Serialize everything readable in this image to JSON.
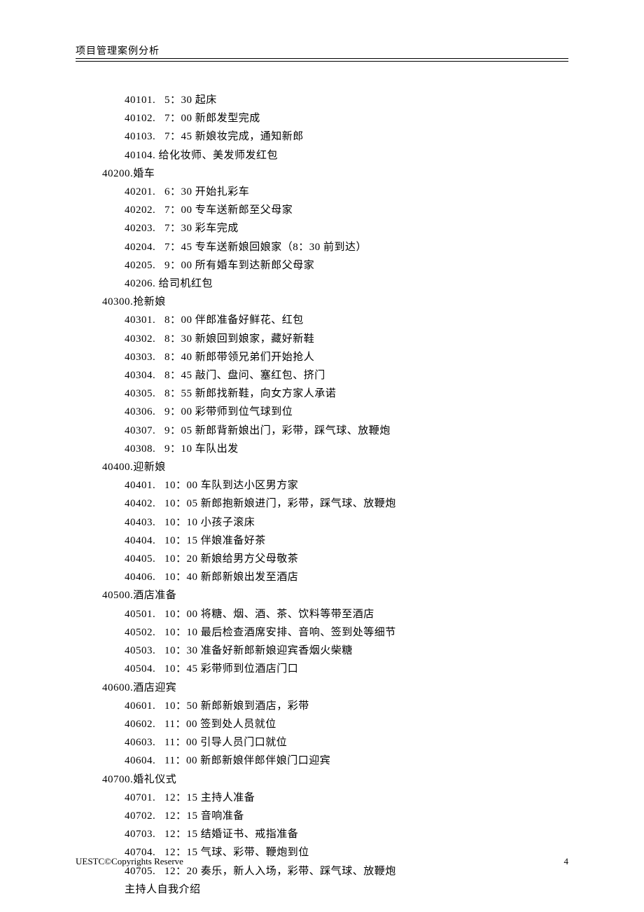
{
  "header": {
    "title": "项目管理案例分析"
  },
  "footer": {
    "left": "UESTC©Copyrights Reserve",
    "page": "4"
  },
  "lines": [
    {
      "indent": 2,
      "num": "40101.",
      "gap": "   ",
      "time": "5：30",
      "text": " 起床"
    },
    {
      "indent": 2,
      "num": "40102.",
      "gap": "   ",
      "time": "7：00",
      "text": " 新郎发型完成"
    },
    {
      "indent": 2,
      "num": "40103.",
      "gap": "   ",
      "time": "7：45",
      "text": " 新娘妆完成，通知新郎"
    },
    {
      "indent": 2,
      "num": "40104.",
      "gap": " ",
      "time": "",
      "text": "给化妆师、美发师发红包"
    },
    {
      "indent": 1,
      "num": "40200.",
      "gap": "",
      "time": "",
      "text": "婚车"
    },
    {
      "indent": 2,
      "num": "40201.",
      "gap": "   ",
      "time": "6：30",
      "text": " 开始扎彩车"
    },
    {
      "indent": 2,
      "num": "40202.",
      "gap": "   ",
      "time": "7：00",
      "text": " 专车送新郎至父母家"
    },
    {
      "indent": 2,
      "num": "40203.",
      "gap": "   ",
      "time": "7：30",
      "text": " 彩车完成"
    },
    {
      "indent": 2,
      "num": "40204.",
      "gap": "   ",
      "time": "7：45",
      "text": " 专车送新娘回娘家（8：30 前到达）"
    },
    {
      "indent": 2,
      "num": "40205.",
      "gap": "   ",
      "time": "9：00",
      "text": " 所有婚车到达新郎父母家"
    },
    {
      "indent": 2,
      "num": "40206.",
      "gap": " ",
      "time": "",
      "text": "给司机红包"
    },
    {
      "indent": 1,
      "num": "40300.",
      "gap": "",
      "time": "",
      "text": "抢新娘"
    },
    {
      "indent": 2,
      "num": "40301.",
      "gap": "   ",
      "time": "8：00",
      "text": " 伴郎准备好鲜花、红包"
    },
    {
      "indent": 2,
      "num": "40302.",
      "gap": "   ",
      "time": "8：30",
      "text": " 新娘回到娘家，藏好新鞋"
    },
    {
      "indent": 2,
      "num": "40303.",
      "gap": "   ",
      "time": "8：40",
      "text": " 新郎带领兄弟们开始抢人"
    },
    {
      "indent": 2,
      "num": "40304.",
      "gap": "   ",
      "time": "8：45",
      "text": " 敲门、盘问、塞红包、挤门"
    },
    {
      "indent": 2,
      "num": "40305.",
      "gap": "   ",
      "time": "8：55",
      "text": " 新郎找新鞋，向女方家人承诺"
    },
    {
      "indent": 2,
      "num": "40306.",
      "gap": "   ",
      "time": "9：00",
      "text": " 彩带师到位气球到位"
    },
    {
      "indent": 2,
      "num": "40307.",
      "gap": "   ",
      "time": "9：05",
      "text": " 新郎背新娘出门，彩带，踩气球、放鞭炮"
    },
    {
      "indent": 2,
      "num": "40308.",
      "gap": "   ",
      "time": "9：10",
      "text": " 车队出发"
    },
    {
      "indent": 1,
      "num": "40400.",
      "gap": "",
      "time": "",
      "text": "迎新娘"
    },
    {
      "indent": 2,
      "num": "40401.",
      "gap": "   ",
      "time": "10：00",
      "text": " 车队到达小区男方家"
    },
    {
      "indent": 2,
      "num": "40402.",
      "gap": "   ",
      "time": "10：05",
      "text": " 新郎抱新娘进门，彩带，踩气球、放鞭炮"
    },
    {
      "indent": 2,
      "num": "40403.",
      "gap": "   ",
      "time": "10：10",
      "text": " 小孩子滚床"
    },
    {
      "indent": 2,
      "num": "40404.",
      "gap": "   ",
      "time": "10：15",
      "text": " 伴娘准备好茶"
    },
    {
      "indent": 2,
      "num": "40405.",
      "gap": "   ",
      "time": "10：20",
      "text": " 新娘给男方父母敬茶"
    },
    {
      "indent": 2,
      "num": "40406.",
      "gap": "   ",
      "time": "10：40",
      "text": " 新郎新娘出发至酒店"
    },
    {
      "indent": 1,
      "num": "40500.",
      "gap": "",
      "time": "",
      "text": "酒店准备"
    },
    {
      "indent": 2,
      "num": "40501.",
      "gap": "   ",
      "time": "10：00",
      "text": " 将糖、烟、酒、茶、饮料等带至酒店"
    },
    {
      "indent": 2,
      "num": "40502.",
      "gap": "   ",
      "time": "10：10",
      "text": " 最后检查酒席安排、音响、签到处等细节"
    },
    {
      "indent": 2,
      "num": "40503.",
      "gap": "   ",
      "time": "10：30",
      "text": " 准备好新郎新娘迎宾香烟火柴糖"
    },
    {
      "indent": 2,
      "num": "40504.",
      "gap": "   ",
      "time": "10：45",
      "text": " 彩带师到位酒店门口"
    },
    {
      "indent": 1,
      "num": "40600.",
      "gap": "",
      "time": "",
      "text": "酒店迎宾"
    },
    {
      "indent": 2,
      "num": "40601.",
      "gap": "   ",
      "time": "10：50",
      "text": " 新郎新娘到酒店，彩带"
    },
    {
      "indent": 2,
      "num": "40602.",
      "gap": "   ",
      "time": "11：00",
      "text": " 签到处人员就位"
    },
    {
      "indent": 2,
      "num": "40603.",
      "gap": "   ",
      "time": "11：00",
      "text": " 引导人员门口就位"
    },
    {
      "indent": 2,
      "num": "40604.",
      "gap": "   ",
      "time": "11：00",
      "text": " 新郎新娘伴郎伴娘门口迎宾"
    },
    {
      "indent": 1,
      "num": "40700.",
      "gap": "",
      "time": "",
      "text": "婚礼仪式"
    },
    {
      "indent": 2,
      "num": "40701.",
      "gap": "   ",
      "time": "12：15",
      "text": " 主持人准备"
    },
    {
      "indent": 2,
      "num": "40702.",
      "gap": "   ",
      "time": "12：15",
      "text": " 音响准备"
    },
    {
      "indent": 2,
      "num": "40703.",
      "gap": "   ",
      "time": "12：15",
      "text": " 结婚证书、戒指准备"
    },
    {
      "indent": 2,
      "num": "40704.",
      "gap": "   ",
      "time": "12：15",
      "text": " 气球、彩带、鞭炮到位"
    },
    {
      "indent": 2,
      "num": "40705.",
      "gap": "   ",
      "time": "12：20",
      "text": " 奏乐，新人入场，彩带、踩气球、放鞭炮"
    },
    {
      "indent": 2,
      "num": "",
      "gap": "",
      "time": "",
      "text": "主持人自我介绍"
    }
  ]
}
